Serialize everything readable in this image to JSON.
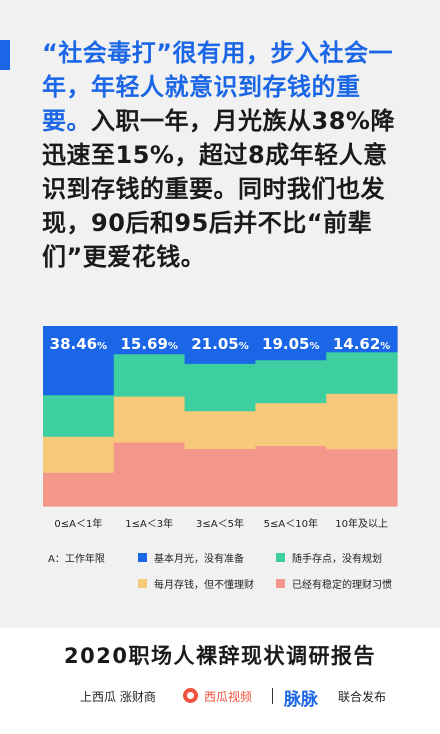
{
  "colors": {
    "accent": "#1a66e6",
    "series": [
      "#1a66e6",
      "#3ecfa0",
      "#f7c97a",
      "#f4978b"
    ]
  },
  "headline": {
    "highlight": "“社会毒打”很有用，步入社会一年，年轻人就意识到存钱的重要。",
    "body": "入职一年，月光族从38%降迅速至15%，超过8成年轻人意识到存钱的重要。同时我们也发现，90后和95后并不比“前辈们”更爱花钱。"
  },
  "chart_data": {
    "type": "bar",
    "stacked": "100%",
    "categories": [
      "0≤A＜1年",
      "1≤A＜3年",
      "3≤A＜5年",
      "5≤A＜10年",
      "10年及以上"
    ],
    "series": [
      {
        "name": "基本月光，没有准备",
        "values": [
          38.46,
          15.69,
          21.05,
          19.05,
          14.62
        ]
      },
      {
        "name": "随手存点，没有规划",
        "values": [
          23.08,
          23.53,
          26.32,
          23.81,
          23.08
        ]
      },
      {
        "name": "每月存钱，但不懂理财",
        "values": [
          20.0,
          25.49,
          21.05,
          23.81,
          30.77
        ]
      },
      {
        "name": "已经有稳定的理财习惯",
        "values": [
          18.46,
          35.29,
          31.58,
          33.33,
          31.53
        ]
      }
    ],
    "data_labels": [
      {
        "value": "38.46",
        "unit": "%"
      },
      {
        "value": "15.69",
        "unit": "%"
      },
      {
        "value": "21.05",
        "unit": "%"
      },
      {
        "value": "19.05",
        "unit": "%"
      },
      {
        "value": "14.62",
        "unit": "%"
      }
    ],
    "ylim": [
      0,
      100
    ],
    "grid": false,
    "legend_title": "A：工作年限",
    "legend_position": "bottom"
  },
  "footer": {
    "title": "2020职场人裸辞现状调研报告",
    "brands": {
      "shangxigua": "上西瓜 涨财商",
      "xigua_video": "西瓜视频",
      "maimai": "脉脉",
      "joint": "联合发布"
    }
  }
}
